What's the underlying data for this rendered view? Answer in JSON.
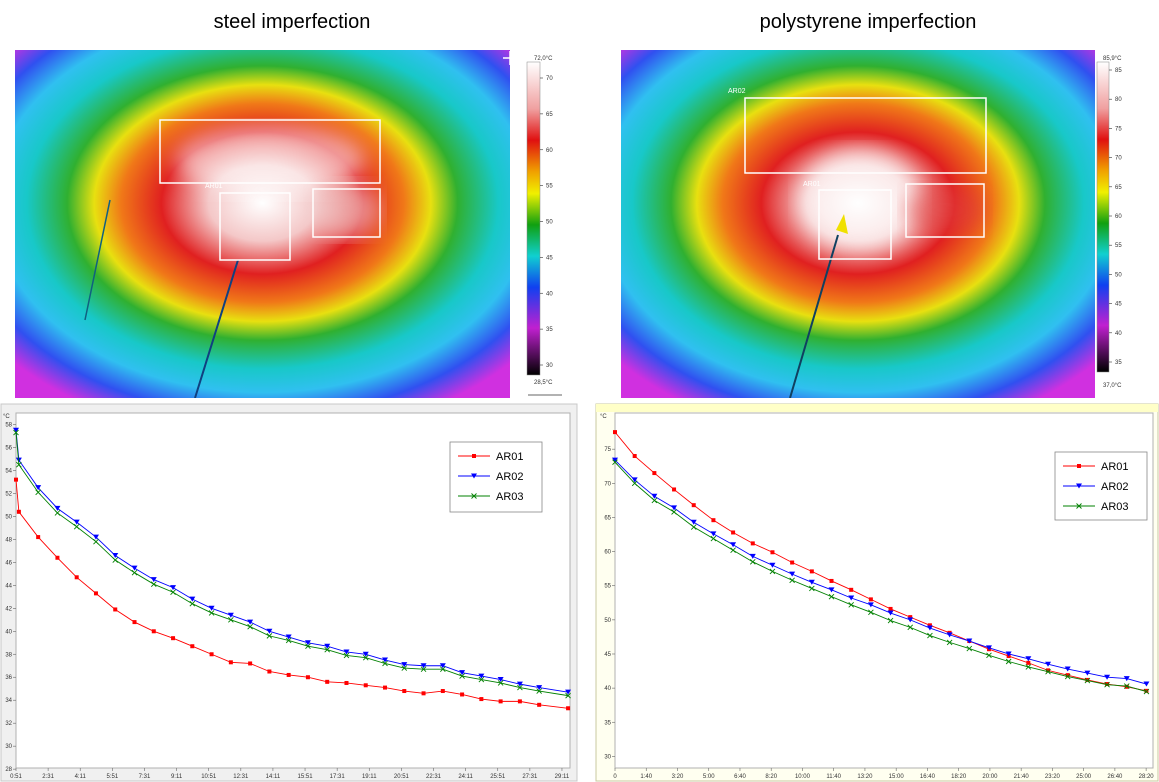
{
  "panels": [
    {
      "title": "steel imperfection",
      "roi_labels": [
        "AR01"
      ],
      "colorbar": {
        "max_label": "72,0°C",
        "min_label": "28,5°C",
        "ticks": [
          70,
          65,
          60,
          55,
          50,
          45,
          40,
          35,
          30
        ]
      }
    },
    {
      "title": "polystyrene imperfection",
      "roi_labels": [
        "AR02",
        "AR01"
      ],
      "colorbar": {
        "max_label": "85,9°C",
        "min_label": "37,0°C",
        "ticks": [
          85,
          80,
          75,
          70,
          65,
          60,
          55,
          50,
          45,
          40,
          35
        ]
      }
    }
  ],
  "chart_data": [
    {
      "type": "line",
      "y_label": "°C",
      "legend": "upper right",
      "grid": false,
      "xlim": [
        0.85,
        29.6
      ],
      "ylim": [
        28.1,
        59
      ],
      "xticks": [
        {
          "value": 0.85,
          "label": "0:51"
        },
        {
          "value": 2.517,
          "label": "2:31"
        },
        {
          "value": 4.183,
          "label": "4:11"
        },
        {
          "value": 5.85,
          "label": "5:51"
        },
        {
          "value": 7.517,
          "label": "7:31"
        },
        {
          "value": 9.183,
          "label": "9:11"
        },
        {
          "value": 10.85,
          "label": "10:51"
        },
        {
          "value": 12.517,
          "label": "12:31"
        },
        {
          "value": 14.183,
          "label": "14:11"
        },
        {
          "value": 15.85,
          "label": "15:51"
        },
        {
          "value": 17.517,
          "label": "17:31"
        },
        {
          "value": 19.183,
          "label": "19:11"
        },
        {
          "value": 20.85,
          "label": "20:51"
        },
        {
          "value": 22.517,
          "label": "22:31"
        },
        {
          "value": 24.183,
          "label": "24:11"
        },
        {
          "value": 25.85,
          "label": "25:51"
        },
        {
          "value": 27.517,
          "label": "27:31"
        },
        {
          "value": 29.183,
          "label": "29:11"
        }
      ],
      "yticks": [
        28,
        30,
        32,
        34,
        36,
        38,
        40,
        42,
        44,
        46,
        48,
        50,
        52,
        54,
        56,
        58
      ],
      "x": [
        0.85,
        1,
        2,
        3,
        4,
        5,
        6,
        7,
        8,
        9,
        10,
        11,
        12,
        13,
        14,
        15,
        16,
        17,
        18,
        19,
        20,
        21,
        22,
        23,
        24,
        25,
        26,
        27,
        28,
        29.5
      ],
      "series": [
        {
          "name": "AR01",
          "color": "#ff0000",
          "marker": "square",
          "values": [
            53.2,
            50.4,
            48.2,
            46.4,
            44.7,
            43.3,
            41.9,
            40.8,
            40.0,
            39.4,
            38.7,
            38.0,
            37.3,
            37.2,
            36.5,
            36.2,
            36.0,
            35.6,
            35.5,
            35.3,
            35.1,
            34.8,
            34.6,
            34.8,
            34.5,
            34.1,
            33.9,
            33.9,
            33.6,
            33.3
          ]
        },
        {
          "name": "AR02",
          "color": "#0000ff",
          "marker": "triangle",
          "values": [
            57.5,
            54.9,
            52.5,
            50.7,
            49.5,
            48.2,
            46.6,
            45.5,
            44.5,
            43.8,
            42.8,
            42.0,
            41.4,
            40.8,
            40.0,
            39.5,
            39.0,
            38.7,
            38.2,
            38.0,
            37.5,
            37.1,
            37.0,
            37.0,
            36.4,
            36.1,
            35.8,
            35.4,
            35.1,
            34.7
          ]
        },
        {
          "name": "AR03",
          "color": "#008000",
          "marker": "cross",
          "values": [
            57.3,
            54.5,
            52.1,
            50.3,
            49.1,
            47.8,
            46.2,
            45.1,
            44.1,
            43.4,
            42.4,
            41.6,
            41.0,
            40.4,
            39.6,
            39.2,
            38.7,
            38.4,
            37.9,
            37.7,
            37.2,
            36.8,
            36.7,
            36.7,
            36.1,
            35.8,
            35.5,
            35.1,
            34.8,
            34.4
          ]
        }
      ]
    },
    {
      "type": "line",
      "y_label": "°C",
      "legend": "upper right",
      "grid": false,
      "xlim": [
        0,
        28.7
      ],
      "ylim": [
        28.3,
        80.3
      ],
      "xticks": [
        0,
        {
          "value": 1.667,
          "label": "1:40"
        },
        {
          "value": 3.333,
          "label": "3:20"
        },
        {
          "value": 5,
          "label": "5:00"
        },
        {
          "value": 6.667,
          "label": "6:40"
        },
        {
          "value": 8.333,
          "label": "8:20"
        },
        {
          "value": 10,
          "label": "10:00"
        },
        {
          "value": 11.667,
          "label": "11:40"
        },
        {
          "value": 13.333,
          "label": "13:20"
        },
        {
          "value": 15,
          "label": "15:00"
        },
        {
          "value": 16.667,
          "label": "16:40"
        },
        {
          "value": 18.333,
          "label": "18:20"
        },
        {
          "value": 20,
          "label": "20:00"
        },
        {
          "value": 21.667,
          "label": "21:40"
        },
        {
          "value": 23.333,
          "label": "23:20"
        },
        {
          "value": 25,
          "label": "25:00"
        },
        {
          "value": 26.667,
          "label": "26:40"
        },
        {
          "value": 28.333,
          "label": "28:20"
        }
      ],
      "yticks": [
        30,
        35,
        40,
        45,
        50,
        55,
        60,
        65,
        70,
        75
      ],
      "x": [
        0,
        1.05,
        2.1,
        3.15,
        4.2,
        5.25,
        6.3,
        7.35,
        8.4,
        9.45,
        10.5,
        11.55,
        12.6,
        13.65,
        14.7,
        15.75,
        16.8,
        17.85,
        18.9,
        19.95,
        21,
        22.05,
        23.1,
        24.15,
        25.2,
        26.25,
        27.3,
        28.35
      ],
      "series": [
        {
          "name": "AR01",
          "color": "#ff0000",
          "marker": "square",
          "values": [
            77.5,
            74.0,
            71.5,
            69.1,
            66.8,
            64.6,
            62.8,
            61.2,
            59.9,
            58.4,
            57.1,
            55.7,
            54.4,
            53.0,
            51.6,
            50.4,
            49.2,
            48.1,
            46.9,
            45.7,
            44.7,
            43.7,
            42.6,
            41.9,
            41.2,
            40.6,
            40.2,
            39.6
          ]
        },
        {
          "name": "AR02",
          "color": "#0000ff",
          "marker": "triangle",
          "values": [
            73.4,
            70.5,
            68.1,
            66.4,
            64.3,
            62.6,
            61.0,
            59.3,
            58.0,
            56.7,
            55.5,
            54.4,
            53.2,
            52.2,
            51.0,
            50.0,
            48.8,
            47.8,
            46.9,
            45.9,
            45.0,
            44.3,
            43.5,
            42.8,
            42.2,
            41.6,
            41.4,
            40.6
          ]
        },
        {
          "name": "AR03",
          "color": "#008000",
          "marker": "cross",
          "values": [
            73.1,
            70.0,
            67.5,
            65.8,
            63.6,
            61.9,
            60.2,
            58.5,
            57.1,
            55.8,
            54.6,
            53.4,
            52.2,
            51.1,
            49.9,
            48.9,
            47.7,
            46.7,
            45.8,
            44.8,
            43.9,
            43.1,
            42.4,
            41.7,
            41.1,
            40.5,
            40.3,
            39.5
          ]
        }
      ]
    }
  ]
}
